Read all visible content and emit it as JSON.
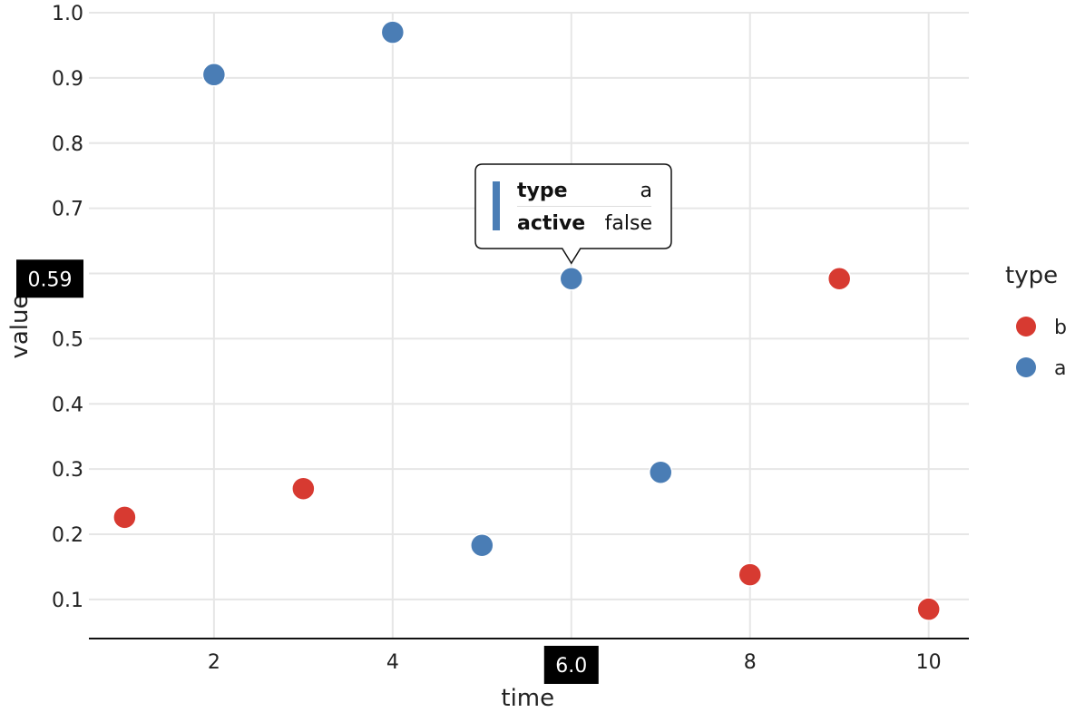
{
  "chart_data": {
    "type": "scatter",
    "xlabel": "time",
    "ylabel": "value",
    "xlim": [
      0.6,
      10.45
    ],
    "ylim": [
      0.04,
      1.0
    ],
    "x_ticks": [
      2,
      4,
      6,
      8,
      10
    ],
    "y_ticks": [
      0.1,
      0.2,
      0.3,
      0.4,
      0.5,
      0.6,
      0.7,
      0.8,
      0.9,
      1.0
    ],
    "y_tick_labels": [
      "0.1",
      "0.2",
      "0.3",
      "0.4",
      "0.5",
      "",
      "0.7",
      "0.8",
      "0.9",
      "1.0"
    ],
    "grid": true,
    "legend": {
      "title": "type",
      "placement": "right",
      "entries": [
        {
          "label": "b",
          "color": "#d73a31"
        },
        {
          "label": "a",
          "color": "#4a7db5"
        }
      ]
    },
    "series": [
      {
        "name": "b",
        "color": "#d73a31",
        "x": [
          1,
          3,
          8,
          9,
          10
        ],
        "y": [
          0.226,
          0.27,
          0.138,
          0.592,
          0.085
        ]
      },
      {
        "name": "a",
        "color": "#4a7db5",
        "x": [
          2,
          4,
          5,
          6,
          7
        ],
        "y": [
          0.905,
          0.97,
          0.183,
          0.592,
          0.295
        ]
      }
    ],
    "tooltip": {
      "x": 6,
      "y": 0.592,
      "color": "#4a7db5",
      "rows": [
        {
          "key": "type",
          "value": "a"
        },
        {
          "key": "active",
          "value": "false"
        }
      ]
    },
    "crosshair": {
      "x_label": "6.0",
      "y_label": "0.59"
    }
  }
}
